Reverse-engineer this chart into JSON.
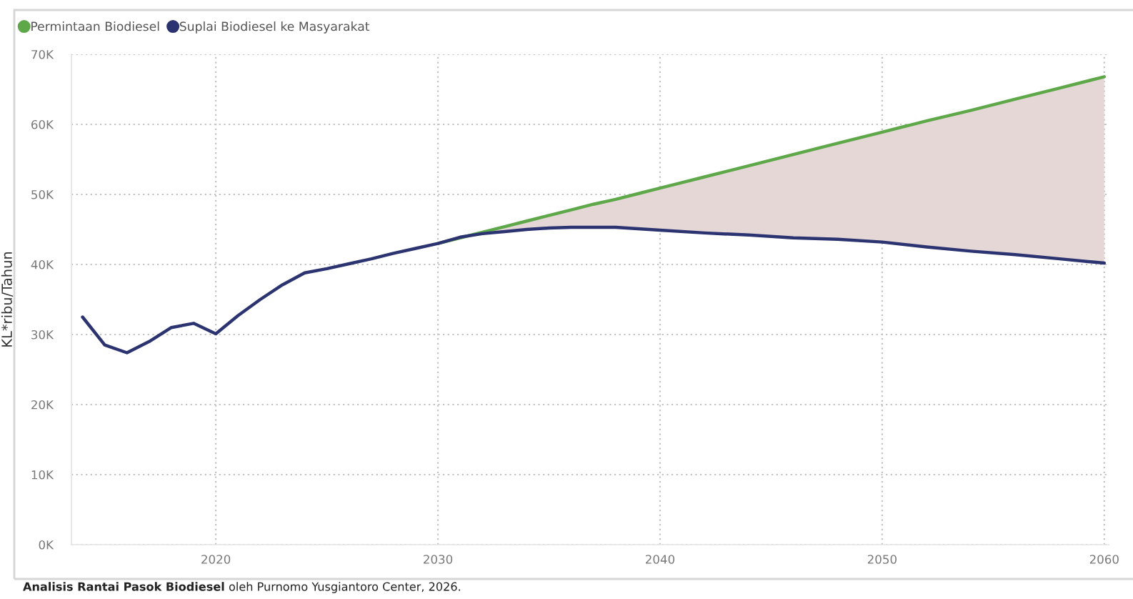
{
  "chart_data": {
    "type": "line",
    "ylabel": "KL*ribu/Tahun",
    "annotations": [
      "Analisis Rantai Pasok Biodiesel",
      "oleh Purnomo Yusgiantoro Center, 2026."
    ],
    "series": [
      {
        "name": "Permintaan Biodiesel",
        "color": "#5ea84a",
        "x": [
          2030,
          2031,
          2032,
          2033,
          2034,
          2035,
          2036,
          2037,
          2038,
          2039,
          2040,
          2042,
          2044,
          2046,
          2048,
          2050,
          2052,
          2054,
          2056,
          2058,
          2060
        ],
        "values": [
          43000,
          43800,
          44600,
          45400,
          46200,
          47000,
          47800,
          48600,
          49300,
          50100,
          50900,
          52500,
          54100,
          55700,
          57300,
          58900,
          60500,
          62000,
          63600,
          65200,
          66800
        ],
        "lower": [
          43000,
          43900,
          44400,
          44700,
          45000,
          45200,
          45300,
          45300,
          45300,
          45100,
          44900,
          44500,
          44200,
          43800,
          43600,
          43200,
          42500,
          41900,
          41400,
          40800,
          40200
        ],
        "upper": [
          43000,
          43800,
          44600,
          45400,
          46200,
          47000,
          47800,
          48600,
          49300,
          50100,
          50900,
          52500,
          54100,
          55700,
          57300,
          58900,
          60500,
          62000,
          63600,
          65200,
          66800
        ]
      },
      {
        "name": "Suplai Biodiesel ke Masyarakat",
        "color": "#2b3370",
        "x": [
          2014,
          2015,
          2016,
          2017,
          2018,
          2019,
          2020,
          2021,
          2022,
          2023,
          2024,
          2025,
          2026,
          2027,
          2028,
          2029,
          2030,
          2031,
          2032,
          2033,
          2034,
          2035,
          2036,
          2037,
          2038,
          2039,
          2040,
          2042,
          2044,
          2046,
          2048,
          2050,
          2052,
          2054,
          2056,
          2058,
          2060
        ],
        "values": [
          32500,
          28500,
          27400,
          29000,
          31000,
          31600,
          30100,
          32700,
          35000,
          37100,
          38800,
          39400,
          40100,
          40800,
          41600,
          42300,
          43000,
          43900,
          44400,
          44700,
          45000,
          45200,
          45300,
          45300,
          45300,
          45100,
          44900,
          44500,
          44200,
          43800,
          43600,
          43200,
          42500,
          41900,
          41400,
          40800,
          40200
        ]
      }
    ],
    "xlim": [
      2013.5,
      2060.2
    ],
    "xticks": [
      2020,
      2030,
      2040,
      2050,
      2060
    ],
    "ylim": [
      0,
      70000
    ],
    "yticks": [
      {
        "value": 0,
        "label": "0K"
      },
      {
        "value": 10000,
        "label": "10K"
      },
      {
        "value": 20000,
        "label": "20K"
      },
      {
        "value": 30000,
        "label": "30K"
      },
      {
        "value": 40000,
        "label": "40K"
      },
      {
        "value": 50000,
        "label": "50K"
      },
      {
        "value": 60000,
        "label": "60K"
      },
      {
        "value": 70000,
        "label": "70K"
      }
    ],
    "grid": true,
    "legend": "top left",
    "line_style": "solid"
  }
}
